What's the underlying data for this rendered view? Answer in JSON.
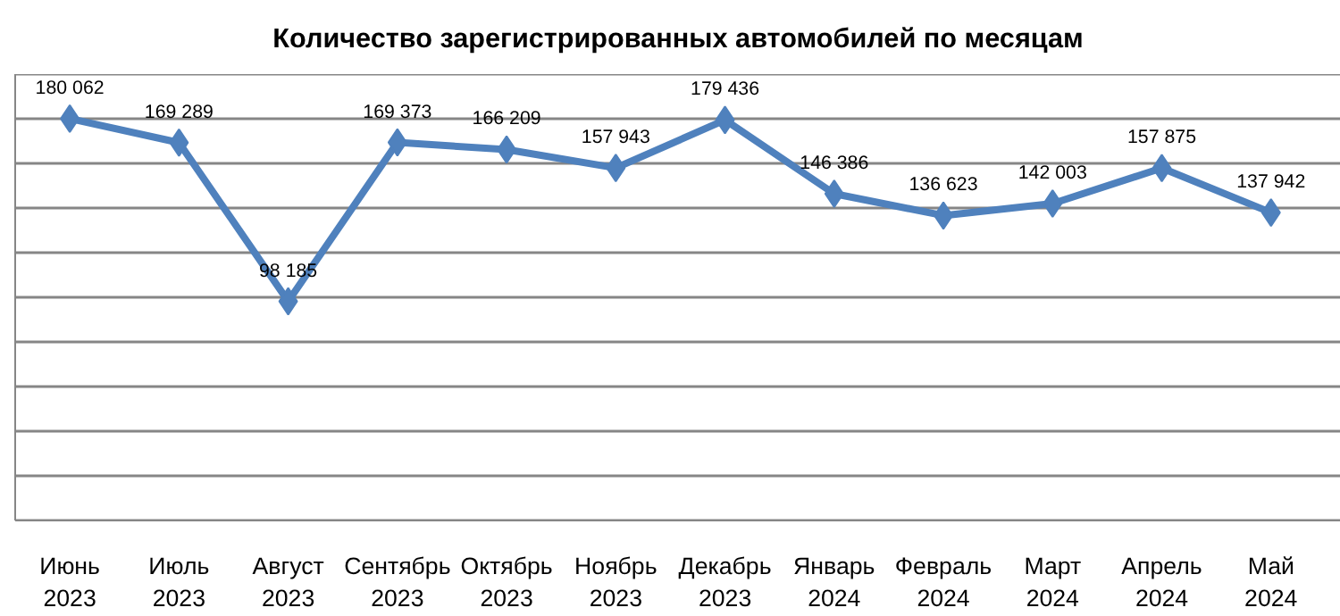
{
  "chart_data": {
    "type": "line",
    "title": "Количество зарегистрированных автомобилей по месяцам",
    "categories": [
      "Июнь\n2023",
      "Июль\n2023",
      "Август\n2023",
      "Сентябрь\n2023",
      "Октябрь\n2023",
      "Ноябрь\n2023",
      "Декабрь\n2023",
      "Январь\n2024",
      "Февраль\n2024",
      "Март\n2024",
      "Апрель\n2024",
      "Май\n2024"
    ],
    "series": [
      {
        "color": "#4f81bd",
        "values": [
          180062,
          169289,
          98185,
          169373,
          166209,
          157943,
          179436,
          146386,
          136623,
          142003,
          157875,
          137942
        ]
      }
    ],
    "ylim": [
      0,
      200000
    ],
    "yticks": [
      {
        "value": 0,
        "label": null
      },
      {
        "value": 20000,
        "label": null
      },
      {
        "value": 40000,
        "label": null
      },
      {
        "value": 60000,
        "label": null
      },
      {
        "value": 80000,
        "label": null
      },
      {
        "value": 100000,
        "label": null
      },
      {
        "value": 120000,
        "label": null
      },
      {
        "value": 140000,
        "label": null
      },
      {
        "value": 160000,
        "label": null
      },
      {
        "value": 180000,
        "label": null
      },
      {
        "value": 200000,
        "label": null
      }
    ],
    "tick_labels": "x",
    "grid": "y",
    "marker": "diamond",
    "line_style": "solid",
    "data_labels": true
  }
}
